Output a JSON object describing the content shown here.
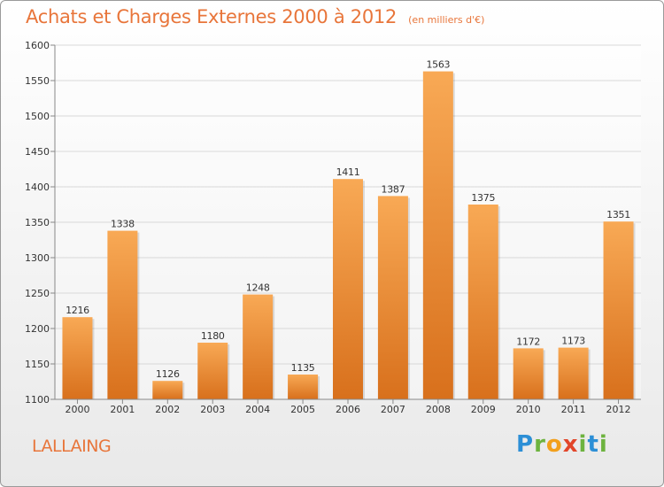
{
  "title": "Achats et Charges Externes 2000 à 2012",
  "unit": "(en milliers d'€)",
  "commune": "LALLAING",
  "logo": {
    "letters": [
      "P",
      "r",
      "o",
      "x",
      "i",
      "t",
      "i"
    ],
    "colors": [
      "#2c8fd6",
      "#6db33f",
      "#f2a01c",
      "#e2462a",
      "#6db33f",
      "#2c8fd6",
      "#6db33f"
    ]
  },
  "colors": {
    "bar_top": "#f8a955",
    "bar_bottom": "#d8701c",
    "text": "#e8753a"
  },
  "chart_data": {
    "type": "bar",
    "categories": [
      "2000",
      "2001",
      "2002",
      "2003",
      "2004",
      "2005",
      "2006",
      "2007",
      "2008",
      "2009",
      "2010",
      "2011",
      "2012"
    ],
    "values": [
      1216,
      1338,
      1126,
      1180,
      1248,
      1135,
      1411,
      1387,
      1563,
      1375,
      1172,
      1173,
      1351
    ],
    "data_labels": [
      "1216",
      "1338",
      "1126",
      "1180",
      "1248",
      "1135",
      "1411",
      "1387",
      "1563",
      "1375",
      "1172",
      "1173",
      "1351"
    ],
    "yticks": [
      "1100",
      "1150",
      "1200",
      "1250",
      "1300",
      "1350",
      "1400",
      "1450",
      "1500",
      "1550",
      "1600"
    ],
    "ylim": [
      1100,
      1600
    ],
    "grid": true,
    "title": "Achats et Charges Externes 2000 à 2012",
    "xlabel": "",
    "ylabel": ""
  }
}
